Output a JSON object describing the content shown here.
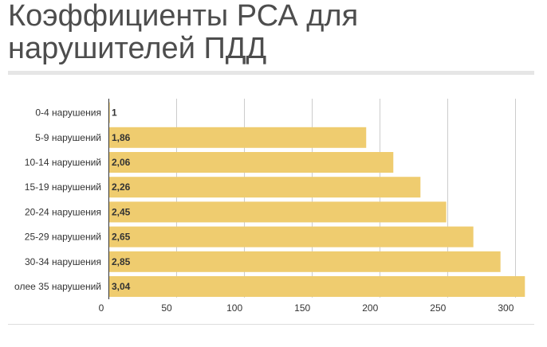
{
  "title_lines": [
    "Коэффициенты РСА для",
    "нарушителей ПДД"
  ],
  "colors": {
    "bar": "#efcc6f",
    "grid": "#cccccc",
    "axis": "#333333",
    "title": "#4d4d4d"
  },
  "chart_data": {
    "type": "bar",
    "orientation": "horizontal",
    "categories": [
      "0-4 нарушения",
      "5-9 нарушений",
      "10-14 нарушений",
      "15-19 нарушений",
      "20-24 нарушения",
      "25-29 нарушений",
      "30-34 нарушения",
      "олее 35 нарушений"
    ],
    "values": [
      1,
      190,
      210,
      230,
      249,
      269,
      289,
      307
    ],
    "value_labels": [
      "1",
      "1,86",
      "2,06",
      "2,26",
      "2,45",
      "2,65",
      "2,85",
      "3,04"
    ],
    "x_ticks": [
      0,
      50,
      100,
      150,
      200,
      250,
      300
    ],
    "xlim": [
      0,
      308
    ],
    "grid": true,
    "title": "Коэффициенты РСА для нарушителей ПДД",
    "xlabel": "",
    "ylabel": ""
  }
}
